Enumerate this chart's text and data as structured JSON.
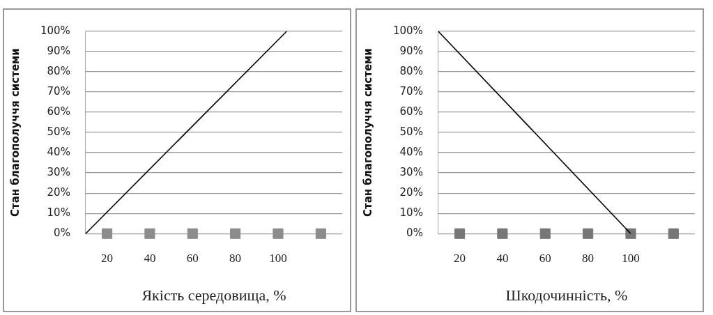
{
  "chart_data": [
    {
      "type": "line",
      "xlabel": "Якість середовища, %",
      "ylabel": "Стан благополуччя системи",
      "xlim": [
        10,
        130
      ],
      "xticks": [
        20,
        40,
        60,
        80,
        100
      ],
      "ylim": [
        0,
        100
      ],
      "yticks": [
        {
          "value": 0,
          "label": "0%"
        },
        {
          "value": 10,
          "label": "10%"
        },
        {
          "value": 20,
          "label": "20%"
        },
        {
          "value": 30,
          "label": "30%"
        },
        {
          "value": 40,
          "label": "40%"
        },
        {
          "value": 50,
          "label": "50%"
        },
        {
          "value": 60,
          "label": "60%"
        },
        {
          "value": 70,
          "label": "70%"
        },
        {
          "value": 80,
          "label": "80%"
        },
        {
          "value": 90,
          "label": "90%"
        },
        {
          "value": 100,
          "label": "100%"
        }
      ],
      "grid": "y",
      "series": [
        {
          "color": "#000000",
          "x": [
            10,
            104
          ],
          "values": [
            0,
            100
          ],
          "marker": "none"
        },
        {
          "type": "scatter",
          "color": "#8c8c8c",
          "x": [
            20,
            40,
            60,
            80,
            100,
            120
          ],
          "values": [
            0,
            0,
            0,
            0,
            0,
            0
          ],
          "marker": "square"
        }
      ]
    },
    {
      "type": "line",
      "xlabel": "Шкодочинність, %",
      "ylabel": "Стан благополуччя системи",
      "xlim": [
        10,
        130
      ],
      "xticks": [
        20,
        40,
        60,
        80,
        100
      ],
      "ylim": [
        0,
        100
      ],
      "yticks": [
        {
          "value": 0,
          "label": "0%"
        },
        {
          "value": 10,
          "label": "10%"
        },
        {
          "value": 20,
          "label": "20%"
        },
        {
          "value": 30,
          "label": "30%"
        },
        {
          "value": 40,
          "label": "40%"
        },
        {
          "value": 50,
          "label": "50%"
        },
        {
          "value": 60,
          "label": "60%"
        },
        {
          "value": 70,
          "label": "70%"
        },
        {
          "value": 80,
          "label": "80%"
        },
        {
          "value": 90,
          "label": "90%"
        },
        {
          "value": 100,
          "label": "100%"
        }
      ],
      "grid": "y",
      "series": [
        {
          "color": "#000000",
          "x": [
            10,
            100
          ],
          "values": [
            100,
            0
          ],
          "marker": "none"
        },
        {
          "type": "scatter",
          "color": "#767676",
          "x": [
            20,
            40,
            60,
            80,
            100,
            120
          ],
          "values": [
            0,
            0,
            0,
            0,
            0,
            0
          ],
          "marker": "square"
        }
      ]
    }
  ]
}
